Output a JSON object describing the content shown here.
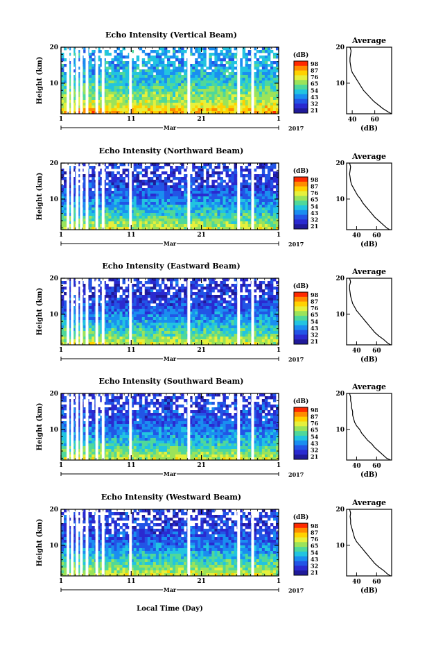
{
  "figure": {
    "xlabel": "Local Time (Day)",
    "month_label": "Mar",
    "year_label": "2017",
    "colorbar_unit": "(dB)",
    "colorbar_ticks": [
      "98",
      "87",
      "76",
      "65",
      "54",
      "43",
      "32",
      "21"
    ],
    "colorbar_colors": [
      "#ff2a00",
      "#ff8c00",
      "#ffd200",
      "#e6f03c",
      "#9be35a",
      "#4fd89a",
      "#22c4e0",
      "#1a8ef0",
      "#2255e6",
      "#2a2ad0",
      "#201a9a"
    ],
    "profile_title": "Average",
    "profile_xlabel": "(dB)"
  },
  "chart_data": [
    {
      "type": "heatmap",
      "title": "Echo Intensity (Vertical Beam)",
      "xlabel": "Local Time (Day)",
      "ylabel": "Height (km)",
      "x_ticks": [
        "1",
        "11",
        "21",
        "1"
      ],
      "y_ticks": [
        "10",
        "20"
      ],
      "x_range_days": [
        1,
        32
      ],
      "y_range_km": [
        1.5,
        20
      ],
      "colorbar_range_db": [
        21,
        98
      ],
      "data_gaps_day": [
        2.0,
        2.6,
        3.3,
        3.9,
        4.7,
        6.1,
        7.0,
        10.9,
        19.2,
        26.3,
        28.3
      ],
      "profile": {
        "title": "Average",
        "xlabel": "(dB)",
        "x_ticks": [
          "40",
          "60"
        ],
        "y_ticks": [
          "10",
          "20"
        ],
        "x_range": [
          35,
          75
        ],
        "height_km": [
          1.5,
          2,
          3,
          4,
          5,
          6,
          7,
          8,
          9,
          10,
          11,
          12,
          13,
          14,
          15,
          16,
          17,
          18,
          19,
          20
        ],
        "mean_db": [
          75,
          72,
          67,
          63,
          59,
          56,
          53,
          50,
          48,
          46,
          44,
          42,
          40,
          39,
          38.5,
          38,
          38,
          38.5,
          39,
          38
        ]
      }
    },
    {
      "type": "heatmap",
      "title": "Echo Intensity (Northward Beam)",
      "xlabel": "Local Time (Day)",
      "ylabel": "Height (km)",
      "x_ticks": [
        "1",
        "11",
        "21",
        "1"
      ],
      "y_ticks": [
        "10",
        "20"
      ],
      "x_range_days": [
        1,
        32
      ],
      "y_range_km": [
        1.5,
        20
      ],
      "colorbar_range_db": [
        21,
        98
      ],
      "data_gaps_day": [
        2.0,
        2.6,
        3.3,
        3.9,
        4.7,
        6.1,
        7.0,
        10.9,
        19.2,
        26.3,
        28.3
      ],
      "profile": {
        "title": "Average",
        "xlabel": "(dB)",
        "x_ticks": [
          "40",
          "60"
        ],
        "y_ticks": [
          "10",
          "20"
        ],
        "x_range": [
          30,
          75
        ],
        "height_km": [
          1.5,
          2,
          3,
          4,
          5,
          6,
          7,
          8,
          9,
          10,
          11,
          12,
          13,
          14,
          15,
          16,
          17,
          18,
          19,
          20
        ],
        "mean_db": [
          73,
          70,
          66,
          62,
          58,
          55,
          52,
          49,
          46,
          44,
          41,
          39,
          37,
          35,
          34,
          33.5,
          33,
          33.5,
          34,
          33
        ]
      }
    },
    {
      "type": "heatmap",
      "title": "Echo Intensity (Eastward Beam)",
      "xlabel": "Local Time (Day)",
      "ylabel": "Height (km)",
      "x_ticks": [
        "1",
        "11",
        "21",
        "1"
      ],
      "y_ticks": [
        "10",
        "20"
      ],
      "x_range_days": [
        1,
        32
      ],
      "y_range_km": [
        1.5,
        20
      ],
      "colorbar_range_db": [
        21,
        98
      ],
      "data_gaps_day": [
        2.0,
        2.6,
        3.3,
        3.9,
        4.7,
        6.1,
        7.0,
        10.9,
        19.2,
        26.3,
        28.3
      ],
      "profile": {
        "title": "Average",
        "xlabel": "(dB)",
        "x_ticks": [
          "40",
          "60"
        ],
        "y_ticks": [
          "10",
          "20"
        ],
        "x_range": [
          30,
          75
        ],
        "height_km": [
          1.5,
          2,
          3,
          4,
          5,
          6,
          7,
          8,
          9,
          10,
          11,
          12,
          13,
          14,
          15,
          16,
          17,
          18,
          19,
          20
        ],
        "mean_db": [
          74,
          71,
          67,
          62,
          58,
          55,
          52,
          49,
          46,
          43,
          40,
          38,
          36,
          35,
          34,
          33.5,
          33,
          33,
          34,
          33
        ]
      }
    },
    {
      "type": "heatmap",
      "title": "Echo Intensity (Southward Beam)",
      "xlabel": "Local Time (Day)",
      "ylabel": "Height (km)",
      "x_ticks": [
        "1",
        "11",
        "21",
        "1"
      ],
      "y_ticks": [
        "10",
        "20"
      ],
      "x_range_days": [
        1,
        32
      ],
      "y_range_km": [
        1.5,
        20
      ],
      "colorbar_range_db": [
        21,
        98
      ],
      "data_gaps_day": [
        2.0,
        2.6,
        3.3,
        3.9,
        4.7,
        6.1,
        7.0,
        10.9,
        19.2,
        26.3,
        28.3
      ],
      "profile": {
        "title": "Average",
        "xlabel": "(dB)",
        "x_ticks": [
          "40",
          "60"
        ],
        "y_ticks": [
          "10",
          "20"
        ],
        "x_range": [
          30,
          75
        ],
        "height_km": [
          1.5,
          2,
          3,
          4,
          5,
          6,
          7,
          8,
          9,
          10,
          11,
          12,
          13,
          14,
          15,
          16,
          17,
          18,
          19,
          20
        ],
        "mean_db": [
          74,
          70,
          66,
          62,
          58,
          55,
          51,
          48,
          45,
          43,
          40,
          38,
          37,
          36,
          36,
          35,
          35,
          34,
          34,
          33
        ]
      }
    },
    {
      "type": "heatmap",
      "title": "Echo Intensity (Westward Beam)",
      "xlabel": "Local Time (Day)",
      "ylabel": "Height (km)",
      "x_ticks": [
        "1",
        "11",
        "21",
        "1"
      ],
      "y_ticks": [
        "10",
        "20"
      ],
      "x_range_days": [
        1,
        32
      ],
      "y_range_km": [
        1.5,
        20
      ],
      "colorbar_range_db": [
        21,
        98
      ],
      "data_gaps_day": [
        2.0,
        2.6,
        3.3,
        3.9,
        4.7,
        6.1,
        7.0,
        10.9,
        19.2,
        26.3,
        28.3
      ],
      "profile": {
        "title": "Average",
        "xlabel": "(dB)",
        "x_ticks": [
          "40",
          "60"
        ],
        "y_ticks": [
          "10",
          "20"
        ],
        "x_range": [
          30,
          75
        ],
        "height_km": [
          1.5,
          2,
          3,
          4,
          5,
          6,
          7,
          8,
          9,
          10,
          11,
          12,
          13,
          14,
          15,
          16,
          17,
          18,
          19,
          20
        ],
        "mean_db": [
          74,
          71,
          67,
          62,
          58,
          55,
          52,
          49,
          46,
          43,
          40,
          38,
          37,
          36,
          35,
          34,
          34,
          33.5,
          34,
          33
        ]
      }
    }
  ]
}
